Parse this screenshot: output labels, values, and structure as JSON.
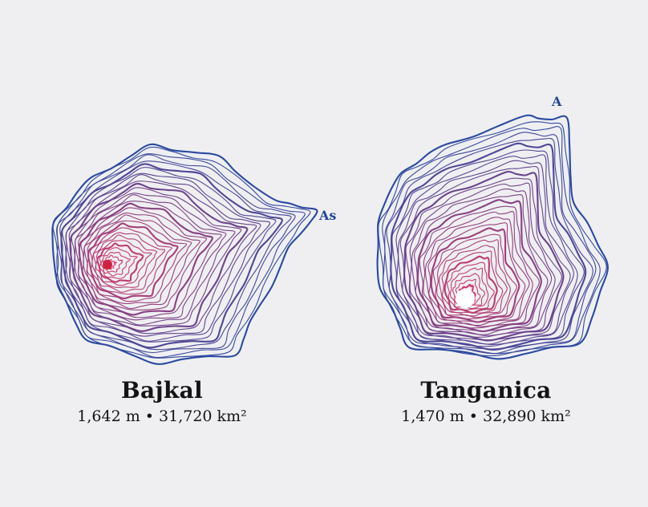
{
  "lakes": [
    {
      "name": "Bajkal",
      "stats": "1,642 m • 31,720 km²",
      "tag": "As",
      "colors": {
        "outer": "#2a4aa0",
        "inner": "#d83a6a",
        "deepest_point": "#d0223e"
      }
    },
    {
      "name": "Tanganica",
      "stats": "1,470 m • 32,890 km²",
      "tag": "A",
      "colors": {
        "outer": "#2a4aa0",
        "inner": "#d83a6a",
        "deepest_point": "#ffffff"
      }
    }
  ]
}
